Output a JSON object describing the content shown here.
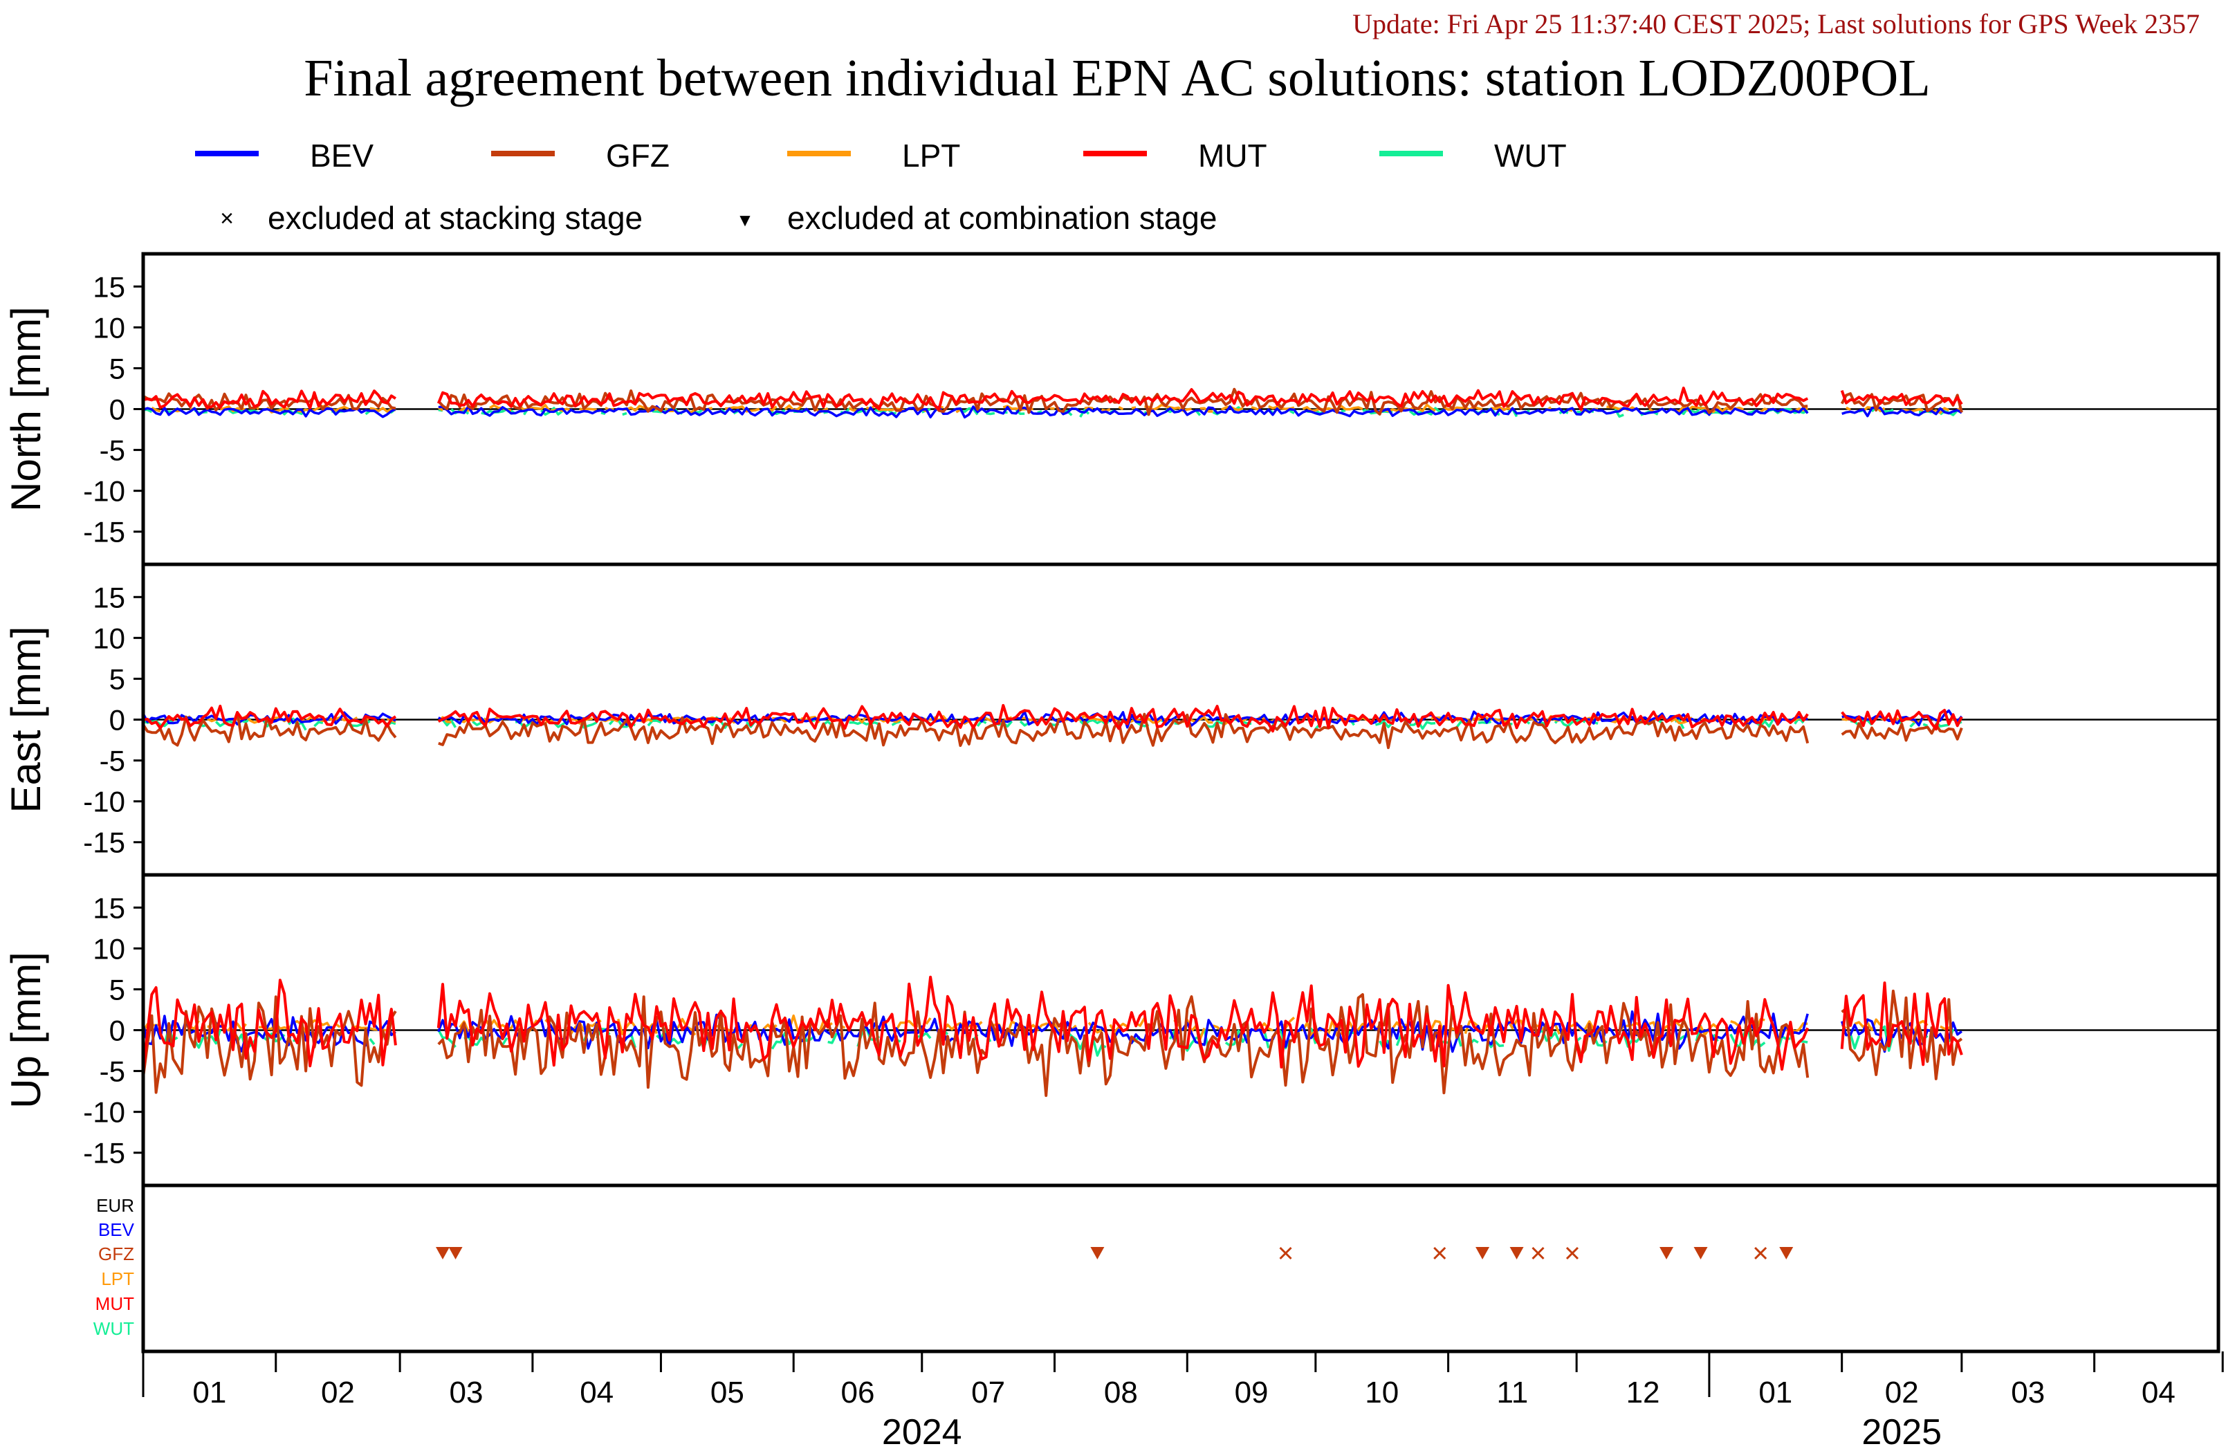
{
  "update_text": "Update: Fri Apr 25 11:37:40 CEST 2025; Last solutions for GPS Week 2357",
  "title": "Final agreement between individual EPN AC solutions: station LODZ00POL",
  "colors": {
    "BEV": "#0000ff",
    "GFZ": "#c43c0c",
    "LPT": "#ff9a0a",
    "MUT": "#ff0000",
    "WUT": "#14ee96",
    "EUR": "#000000",
    "update": "#a01010"
  },
  "legend": {
    "series": [
      "BEV",
      "GFZ",
      "LPT",
      "MUT",
      "WUT"
    ],
    "marker_stacking": "×",
    "marker_combination": "▼",
    "excluded_stacking": "excluded at stacking stage",
    "excluded_combination": "excluded at combination stage"
  },
  "chart_data": {
    "type": "line",
    "x_axis": {
      "month_ticks": [
        "01",
        "02",
        "03",
        "04",
        "05",
        "06",
        "07",
        "08",
        "09",
        "10",
        "11",
        "12",
        "01",
        "02",
        "03",
        "04"
      ],
      "year_labels": [
        "2024",
        "2025"
      ],
      "range": [
        "2024-01-01",
        "2025-04-30"
      ]
    },
    "panels": [
      {
        "ylabel": "North [mm]",
        "ylim": [
          -19,
          19
        ],
        "yticks": [
          "15",
          "10",
          "5",
          "0",
          "-5",
          "-10",
          "-15"
        ],
        "series": {
          "BEV": {
            "level": -0.3,
            "noise": 0.4
          },
          "GFZ": {
            "level": 0.8,
            "noise": 0.8
          },
          "LPT": {
            "level": 0.0,
            "noise": 0.3
          },
          "MUT": {
            "level": 1.2,
            "noise": 0.7
          },
          "WUT": {
            "level": -0.3,
            "noise": 0.3
          }
        }
      },
      {
        "ylabel": "East [mm]",
        "ylim": [
          -19,
          19
        ],
        "yticks": [
          "15",
          "10",
          "5",
          "0",
          "-5",
          "-10",
          "-15"
        ],
        "series": {
          "BEV": {
            "level": 0.1,
            "noise": 0.5
          },
          "GFZ": {
            "level": -1.4,
            "noise": 1.1
          },
          "LPT": {
            "level": 0.0,
            "noise": 0.3
          },
          "MUT": {
            "level": 0.2,
            "noise": 0.9
          },
          "WUT": {
            "level": -0.4,
            "noise": 0.4
          }
        }
      },
      {
        "ylabel": "Up [mm]",
        "ylim": [
          -19,
          19
        ],
        "yticks": [
          "15",
          "10",
          "5",
          "0",
          "-5",
          "-10",
          "-15"
        ],
        "series": {
          "BEV": {
            "level": -0.2,
            "noise": 1.3
          },
          "GFZ": {
            "level": -1.5,
            "noise": 3.8
          },
          "LPT": {
            "level": 0.4,
            "noise": 0.7
          },
          "MUT": {
            "level": 0.5,
            "noise": 3.2
          },
          "WUT": {
            "level": -1.0,
            "noise": 1.0
          }
        }
      }
    ],
    "data_gaps": [
      [
        "2024-03-01",
        "2024-03-10"
      ],
      [
        "2025-01-25",
        "2025-02-01"
      ]
    ],
    "data_end": "2025-03-01",
    "exclusion_rows": [
      "EUR",
      "BEV",
      "GFZ",
      "LPT",
      "MUT",
      "WUT"
    ],
    "exclusions": [
      {
        "date": "2024-03-11",
        "ac": "GFZ",
        "stage": "combination"
      },
      {
        "date": "2024-03-14",
        "ac": "GFZ",
        "stage": "combination"
      },
      {
        "date": "2024-08-11",
        "ac": "GFZ",
        "stage": "combination"
      },
      {
        "date": "2024-09-24",
        "ac": "GFZ",
        "stage": "stacking"
      },
      {
        "date": "2024-10-30",
        "ac": "GFZ",
        "stage": "stacking"
      },
      {
        "date": "2024-11-09",
        "ac": "GFZ",
        "stage": "combination"
      },
      {
        "date": "2024-11-17",
        "ac": "GFZ",
        "stage": "combination"
      },
      {
        "date": "2024-11-22",
        "ac": "GFZ",
        "stage": "stacking"
      },
      {
        "date": "2024-11-30",
        "ac": "GFZ",
        "stage": "stacking"
      },
      {
        "date": "2024-12-22",
        "ac": "GFZ",
        "stage": "combination"
      },
      {
        "date": "2024-12-30",
        "ac": "GFZ",
        "stage": "combination"
      },
      {
        "date": "2025-01-13",
        "ac": "GFZ",
        "stage": "stacking"
      },
      {
        "date": "2025-01-19",
        "ac": "GFZ",
        "stage": "combination"
      }
    ]
  }
}
